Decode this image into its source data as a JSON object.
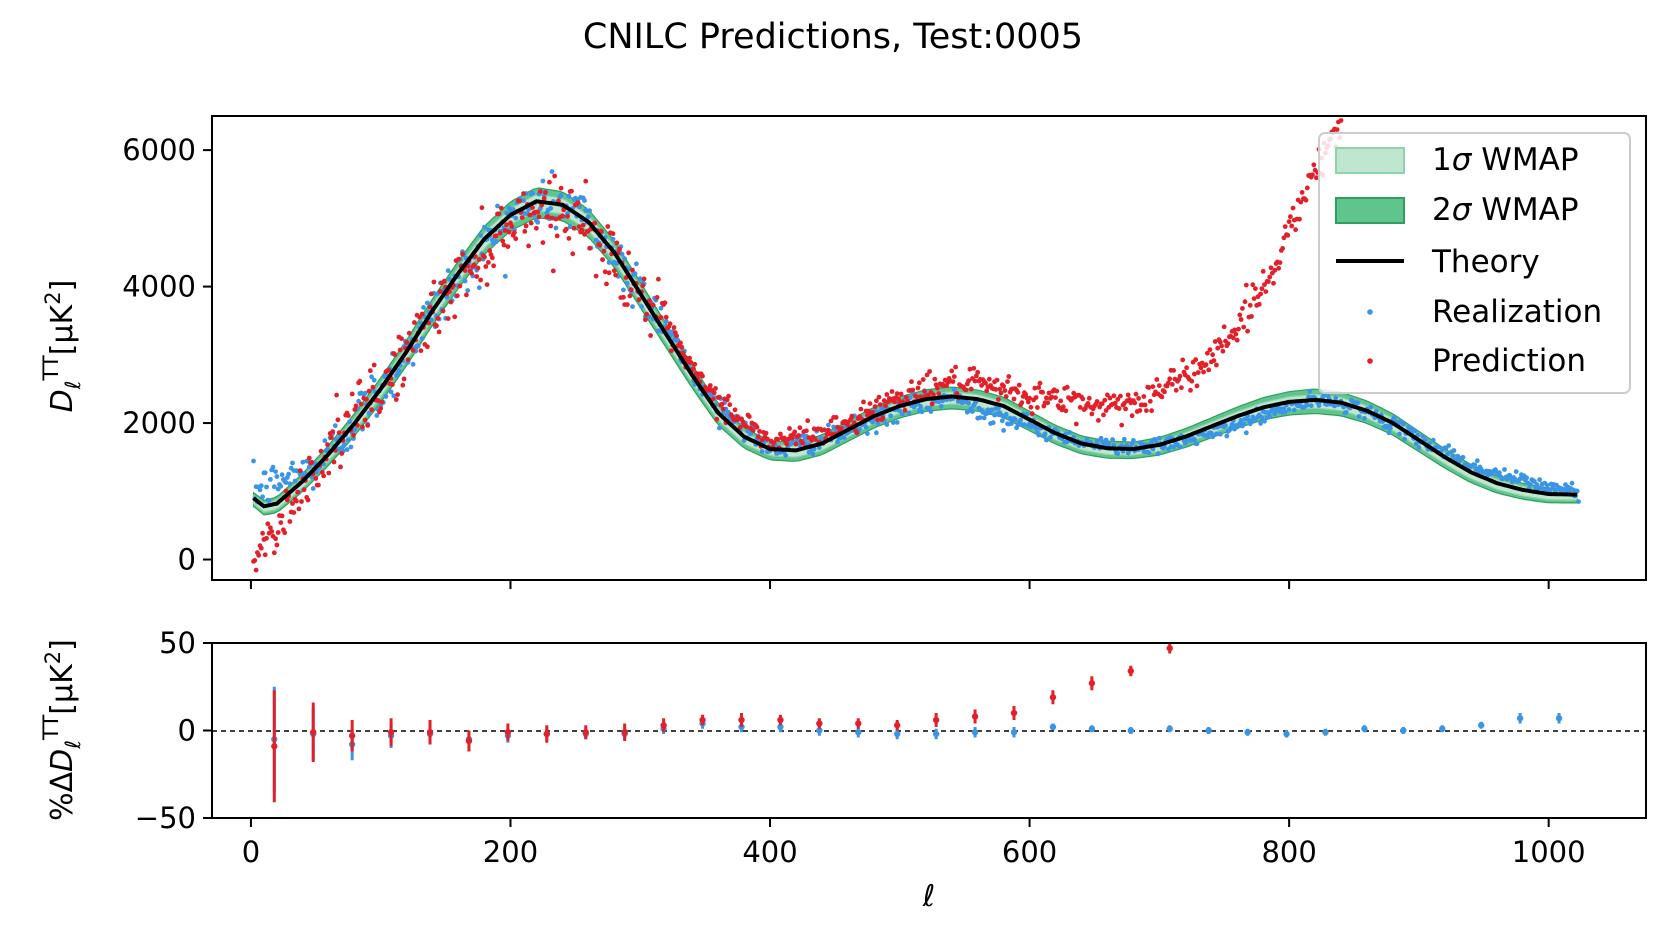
{
  "title": "CNILC Predictions, Test:0005",
  "colors": {
    "realization": "#3b95e6",
    "prediction": "#e3202a",
    "theory": "#000000",
    "band1": "#bfe6cf",
    "band2": "#5fc58c",
    "band1_edge": "#8fd3ac",
    "band2_edge": "#2f9e5e"
  },
  "legend": {
    "band1_pre": "1",
    "band1_post": " WMAP",
    "band2_pre": "2",
    "band2_post": " WMAP",
    "sigma": "σ",
    "theory": "Theory",
    "realization": "Realization",
    "prediction": "Prediction"
  },
  "top_panel": {
    "ylabel_main": "D",
    "ylabel_sub": "ℓ",
    "ylabel_sup": "TT",
    "ylabel_unit_pre": "[μK",
    "ylabel_unit_sup": "2",
    "ylabel_unit_post": "]"
  },
  "bottom_panel": {
    "ylabel_pre": "%Δ",
    "ylabel_main": "D",
    "ylabel_sub": "ℓ",
    "ylabel_sup": "TT",
    "ylabel_unit_pre": "[μK",
    "ylabel_unit_sup": "2",
    "ylabel_unit_post": "]"
  },
  "xlabel": "ℓ",
  "chart_data": [
    {
      "type": "scatter",
      "panel": "top",
      "xlim": [
        -30,
        1075
      ],
      "ylim": [
        -300,
        6500
      ],
      "xticks": [
        0,
        200,
        400,
        600,
        800,
        1000
      ],
      "yticks": [
        0,
        2000,
        4000,
        6000
      ],
      "ytick_labels": [
        "0",
        "2000",
        "4000",
        "6000"
      ],
      "grid": false,
      "legend_position": "top-right",
      "theory": {
        "name": "Theory",
        "x": [
          2,
          10,
          20,
          40,
          60,
          80,
          100,
          120,
          140,
          160,
          180,
          200,
          220,
          240,
          260,
          280,
          300,
          320,
          340,
          360,
          380,
          400,
          420,
          440,
          460,
          480,
          500,
          520,
          540,
          560,
          580,
          600,
          620,
          640,
          660,
          680,
          700,
          720,
          740,
          760,
          780,
          800,
          820,
          840,
          860,
          880,
          900,
          920,
          940,
          960,
          980,
          1000,
          1023
        ],
        "y": [
          900,
          780,
          820,
          1150,
          1550,
          2000,
          2500,
          3050,
          3650,
          4200,
          4700,
          5050,
          5250,
          5200,
          4950,
          4500,
          3900,
          3300,
          2700,
          2150,
          1800,
          1620,
          1600,
          1700,
          1900,
          2100,
          2250,
          2350,
          2390,
          2350,
          2250,
          2050,
          1850,
          1700,
          1630,
          1620,
          1680,
          1800,
          1950,
          2100,
          2230,
          2310,
          2340,
          2300,
          2180,
          2000,
          1750,
          1500,
          1280,
          1120,
          1020,
          960,
          950
        ]
      },
      "wmap_1sigma": {
        "name": "1σ WMAP",
        "x": [
          2,
          100,
          220,
          400,
          540,
          680,
          820,
          1023
        ],
        "y_low": [
          860,
          2420,
          5150,
          1560,
          2320,
          1570,
          2260,
          910
        ],
        "y_high": [
          940,
          2580,
          5350,
          1680,
          2460,
          1670,
          2420,
          990
        ]
      },
      "wmap_2sigma": {
        "name": "2σ WMAP",
        "x": [
          2,
          100,
          220,
          400,
          540,
          680,
          820,
          1023
        ],
        "y_low": [
          820,
          2340,
          5050,
          1500,
          2250,
          1520,
          2180,
          870
        ],
        "y_high": [
          980,
          2660,
          5450,
          1740,
          2530,
          1720,
          2500,
          1030
        ]
      },
      "series": [
        {
          "name": "Realization",
          "description": "noisy realization scattered around theory from ell 2 to 1023",
          "x": [
            2,
            50,
            100,
            150,
            200,
            225,
            250,
            300,
            350,
            400,
            450,
            500,
            540,
            600,
            650,
            700,
            750,
            800,
            820,
            850,
            900,
            950,
            1000,
            1023
          ],
          "y": [
            1000,
            1350,
            2500,
            3900,
            5050,
            5250,
            5150,
            4000,
            2450,
            1600,
            1800,
            2200,
            2380,
            1950,
            1680,
            1650,
            1900,
            2240,
            2330,
            2260,
            1770,
            1300,
            1060,
            1000
          ]
        },
        {
          "name": "Prediction",
          "description": "predicted spectrum; tracks theory to ell ~500 then exceeds it strongly at high ell",
          "x": [
            2,
            50,
            100,
            150,
            200,
            225,
            250,
            300,
            350,
            400,
            450,
            500,
            540,
            560,
            600,
            650,
            680,
            700,
            730,
            760,
            790,
            800,
            820,
            840
          ],
          "y": [
            0,
            1350,
            2500,
            3850,
            4950,
            5150,
            5050,
            3950,
            2500,
            1700,
            1900,
            2400,
            2600,
            2550,
            2400,
            2250,
            2300,
            2450,
            2800,
            3400,
            4300,
            4900,
            5700,
            6400
          ]
        }
      ]
    },
    {
      "type": "scatter",
      "panel": "bottom",
      "xlim": [
        -30,
        1075
      ],
      "ylim": [
        -50,
        50
      ],
      "xticks": [
        0,
        200,
        400,
        600,
        800,
        1000
      ],
      "xtick_labels": [
        "0",
        "200",
        "400",
        "600",
        "800",
        "1000"
      ],
      "yticks": [
        -50,
        0,
        50
      ],
      "ytick_labels": [
        "−50",
        "0",
        "50"
      ],
      "reference_line": 0,
      "series": [
        {
          "name": "Realization",
          "x": [
            18,
            48,
            78,
            108,
            138,
            168,
            198,
            228,
            258,
            288,
            318,
            348,
            378,
            408,
            438,
            468,
            498,
            528,
            558,
            588,
            618,
            648,
            678,
            708,
            738,
            768,
            798,
            828,
            858,
            888,
            918,
            948,
            978,
            1008
          ],
          "y": [
            -5,
            -2,
            -8,
            -3,
            -2,
            -5,
            -3,
            -2,
            -2,
            -2,
            1,
            4,
            2,
            2,
            0,
            -1,
            -2,
            -2,
            -1,
            -1,
            2,
            1,
            0,
            1,
            0,
            -1,
            -2,
            -1,
            1,
            0,
            1,
            3,
            7,
            7
          ],
          "yerr": [
            30,
            15,
            9,
            7,
            6,
            5,
            4,
            4,
            3,
            3,
            3,
            3,
            3,
            3,
            3,
            3,
            3,
            3,
            3,
            3,
            2,
            2,
            2,
            2,
            2,
            2,
            2,
            2,
            2,
            2,
            2,
            2,
            3,
            3
          ]
        },
        {
          "name": "Prediction",
          "x": [
            18,
            48,
            78,
            108,
            138,
            168,
            198,
            228,
            258,
            288,
            318,
            348,
            378,
            408,
            438,
            468,
            498,
            528,
            558,
            588,
            618,
            648,
            678,
            708
          ],
          "y": [
            -9,
            -1,
            -3,
            -1,
            -1,
            -6,
            -1,
            -2,
            -1,
            -1,
            3,
            6,
            6,
            6,
            4,
            4,
            3,
            6,
            8,
            10,
            19,
            27,
            34,
            47
          ],
          "yerr": [
            32,
            17,
            9,
            8,
            7,
            6,
            5,
            5,
            4,
            5,
            4,
            3,
            4,
            3,
            3,
            3,
            3,
            4,
            4,
            4,
            4,
            4,
            3,
            3
          ]
        }
      ]
    }
  ]
}
